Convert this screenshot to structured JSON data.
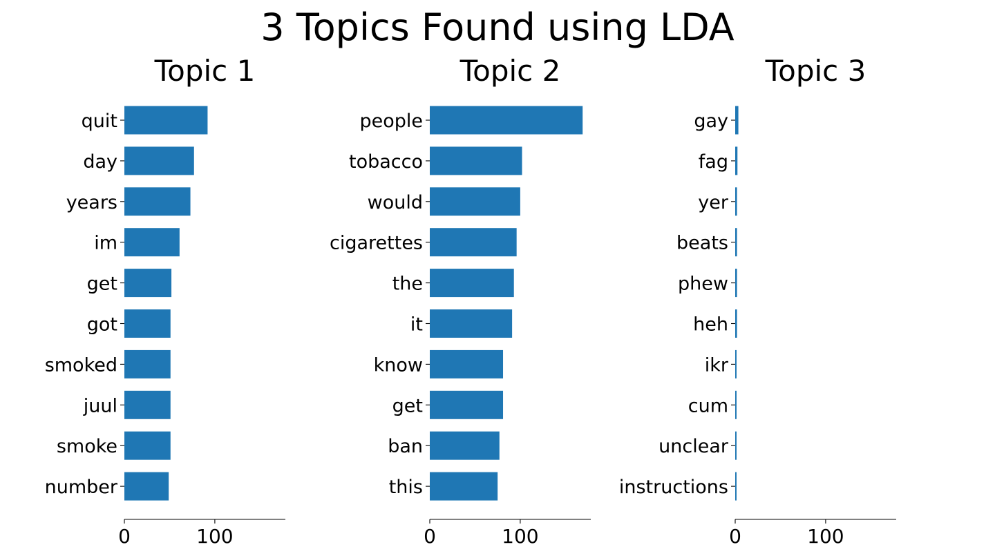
{
  "figure": {
    "title": "3 Topics Found using LDA",
    "bar_color": "#1f77b4"
  },
  "chart_data": [
    {
      "type": "bar",
      "orientation": "horizontal",
      "title": "Topic 1",
      "categories": [
        "quit",
        "day",
        "years",
        "im",
        "get",
        "got",
        "smoked",
        "juul",
        "smoke",
        "number"
      ],
      "values": [
        92,
        77,
        73,
        61,
        52,
        51,
        51,
        51,
        51,
        49
      ],
      "xlim": [
        0,
        178
      ],
      "xticks": [
        0,
        100
      ],
      "xlabel": "",
      "ylabel": "",
      "grid": false
    },
    {
      "type": "bar",
      "orientation": "horizontal",
      "title": "Topic 2",
      "categories": [
        "people",
        "tobacco",
        "would",
        "cigarettes",
        "the",
        "it",
        "know",
        "get",
        "ban",
        "this"
      ],
      "values": [
        169,
        102,
        100,
        96,
        93,
        91,
        81,
        81,
        77,
        75
      ],
      "xlim": [
        0,
        178
      ],
      "xticks": [
        0,
        100
      ],
      "xlabel": "",
      "ylabel": "",
      "grid": false
    },
    {
      "type": "bar",
      "orientation": "horizontal",
      "title": "Topic 3",
      "categories": [
        "gay",
        "fag",
        "yer",
        "beats",
        "phew",
        "heh",
        "ikr",
        "cum",
        "unclear",
        "instructions"
      ],
      "values": [
        3.5,
        2.5,
        2,
        2,
        2,
        2,
        1.5,
        1.5,
        1.5,
        1.5
      ],
      "xlim": [
        0,
        178
      ],
      "xticks": [
        0,
        100
      ],
      "xlabel": "",
      "ylabel": "",
      "grid": false
    }
  ]
}
